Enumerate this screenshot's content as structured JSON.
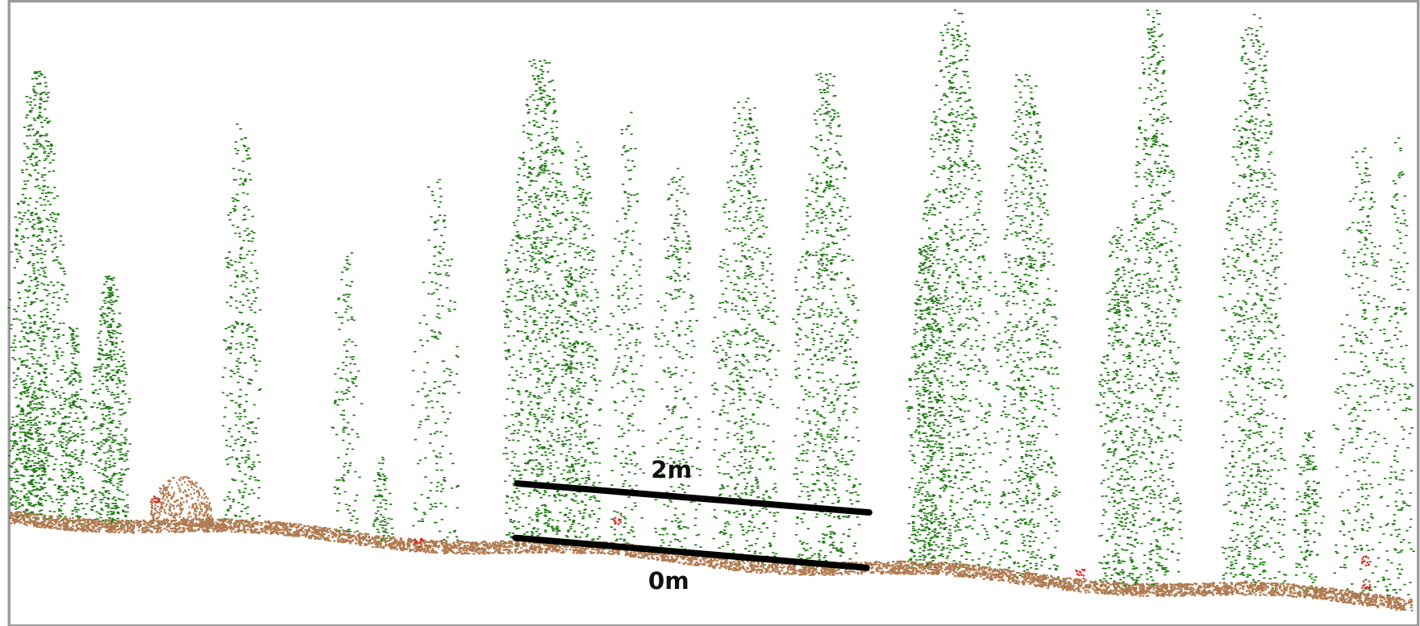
{
  "labels": {
    "upper": "2m",
    "lower": "0m"
  }
}
